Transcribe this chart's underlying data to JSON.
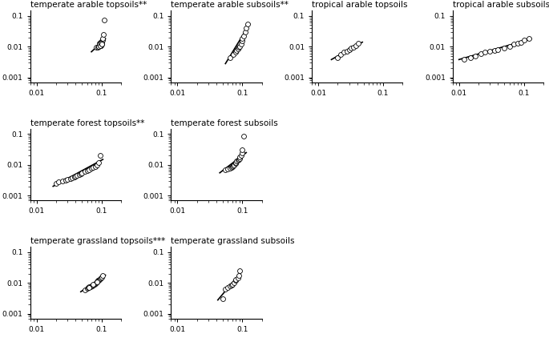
{
  "panels": [
    {
      "title": "temperate arable topsoils**",
      "row": 0,
      "col": 0,
      "x": [
        0.083,
        0.088,
        0.09,
        0.092,
        0.093,
        0.094,
        0.095,
        0.096,
        0.097,
        0.098,
        0.099,
        0.1,
        0.101,
        0.102,
        0.103,
        0.105,
        0.107,
        0.11,
        0.09,
        0.093,
        0.096,
        0.099,
        0.102
      ],
      "y": [
        0.0095,
        0.0098,
        0.01,
        0.011,
        0.012,
        0.013,
        0.011,
        0.014,
        0.012,
        0.013,
        0.011,
        0.015,
        0.012,
        0.013,
        0.016,
        0.019,
        0.025,
        0.075,
        0.01,
        0.012,
        0.011,
        0.013,
        0.012
      ],
      "line_x": [
        0.07,
        0.115
      ],
      "line_y": [
        0.0068,
        0.018
      ]
    },
    {
      "title": "temperate arable subsoils**",
      "row": 0,
      "col": 1,
      "x": [
        0.065,
        0.072,
        0.078,
        0.082,
        0.085,
        0.088,
        0.092,
        0.095,
        0.098,
        0.1,
        0.105,
        0.11,
        0.115,
        0.12
      ],
      "y": [
        0.0045,
        0.0055,
        0.0065,
        0.0075,
        0.0085,
        0.0095,
        0.01,
        0.012,
        0.015,
        0.018,
        0.022,
        0.03,
        0.04,
        0.055
      ],
      "line_x": [
        0.055,
        0.13
      ],
      "line_y": [
        0.0028,
        0.055
      ]
    },
    {
      "title": "tropical arable topsoils",
      "row": 0,
      "col": 2,
      "x": [
        0.02,
        0.022,
        0.025,
        0.028,
        0.03,
        0.032,
        0.035,
        0.038,
        0.042
      ],
      "y": [
        0.0045,
        0.0055,
        0.0065,
        0.007,
        0.008,
        0.009,
        0.0095,
        0.011,
        0.013
      ],
      "line_x": [
        0.016,
        0.048
      ],
      "line_y": [
        0.0038,
        0.014
      ]
    },
    {
      "title": "tropical arable subsoils*",
      "row": 0,
      "col": 3,
      "x": [
        0.012,
        0.015,
        0.018,
        0.022,
        0.025,
        0.03,
        0.035,
        0.04,
        0.05,
        0.06,
        0.07,
        0.08,
        0.09,
        0.1,
        0.12
      ],
      "y": [
        0.004,
        0.0045,
        0.005,
        0.006,
        0.0065,
        0.007,
        0.0075,
        0.008,
        0.009,
        0.01,
        0.012,
        0.013,
        0.014,
        0.016,
        0.018
      ],
      "line_x": [
        0.01,
        0.13
      ],
      "line_y": [
        0.0038,
        0.018
      ]
    },
    {
      "title": "temperate forest topsoils**",
      "row": 1,
      "col": 0,
      "x": [
        0.02,
        0.022,
        0.025,
        0.028,
        0.03,
        0.033,
        0.035,
        0.038,
        0.04,
        0.042,
        0.045,
        0.048,
        0.05,
        0.055,
        0.06,
        0.065,
        0.07,
        0.075,
        0.08,
        0.085,
        0.09,
        0.095
      ],
      "y": [
        0.0025,
        0.0028,
        0.003,
        0.0032,
        0.0033,
        0.0035,
        0.0038,
        0.004,
        0.0042,
        0.0045,
        0.0048,
        0.005,
        0.0055,
        0.006,
        0.0065,
        0.007,
        0.008,
        0.0085,
        0.009,
        0.01,
        0.012,
        0.02
      ],
      "line_x": [
        0.018,
        0.105
      ],
      "line_y": [
        0.002,
        0.015
      ]
    },
    {
      "title": "temperate forest subsoils",
      "row": 1,
      "col": 1,
      "x": [
        0.055,
        0.06,
        0.065,
        0.068,
        0.07,
        0.072,
        0.075,
        0.078,
        0.08,
        0.082,
        0.085,
        0.088,
        0.09,
        0.092,
        0.095,
        0.098,
        0.1,
        0.105
      ],
      "y": [
        0.007,
        0.0075,
        0.008,
        0.0085,
        0.009,
        0.0095,
        0.01,
        0.011,
        0.012,
        0.013,
        0.014,
        0.015,
        0.016,
        0.018,
        0.02,
        0.025,
        0.03,
        0.085
      ],
      "line_x": [
        0.045,
        0.115
      ],
      "line_y": [
        0.0055,
        0.025
      ]
    },
    {
      "title": "temperate grassland topsoils***",
      "row": 2,
      "col": 0,
      "x": [
        0.055,
        0.06,
        0.062,
        0.065,
        0.068,
        0.07,
        0.072,
        0.075,
        0.078,
        0.08,
        0.082,
        0.085,
        0.088,
        0.09,
        0.092,
        0.095,
        0.098,
        0.1,
        0.105,
        0.065,
        0.075,
        0.085
      ],
      "y": [
        0.006,
        0.0068,
        0.007,
        0.0075,
        0.0078,
        0.008,
        0.0082,
        0.0085,
        0.009,
        0.0095,
        0.01,
        0.011,
        0.012,
        0.012,
        0.013,
        0.014,
        0.015,
        0.016,
        0.018,
        0.007,
        0.0088,
        0.011
      ],
      "line_x": [
        0.048,
        0.115
      ],
      "line_y": [
        0.0052,
        0.018
      ]
    },
    {
      "title": "temperate grassland subsoils",
      "row": 2,
      "col": 1,
      "x": [
        0.05,
        0.055,
        0.06,
        0.065,
        0.068,
        0.07,
        0.075,
        0.078,
        0.08,
        0.085,
        0.088,
        0.09
      ],
      "y": [
        0.003,
        0.0065,
        0.007,
        0.008,
        0.0085,
        0.009,
        0.01,
        0.012,
        0.013,
        0.015,
        0.018,
        0.025
      ],
      "line_x": [
        0.042,
        0.095
      ],
      "line_y": [
        0.0028,
        0.022
      ]
    }
  ],
  "xlim": [
    0.008,
    0.2
  ],
  "ylim": [
    0.0007,
    0.15
  ],
  "xticks": [
    0.01,
    0.1
  ],
  "yticks": [
    0.001,
    0.01,
    0.1
  ],
  "marker_size": 18,
  "marker_color": "white",
  "marker_edge_color": "black",
  "line_color": "black",
  "line_width": 1.2,
  "title_fontsize": 7.5,
  "tick_fontsize": 6.5,
  "figure_bg": "white"
}
